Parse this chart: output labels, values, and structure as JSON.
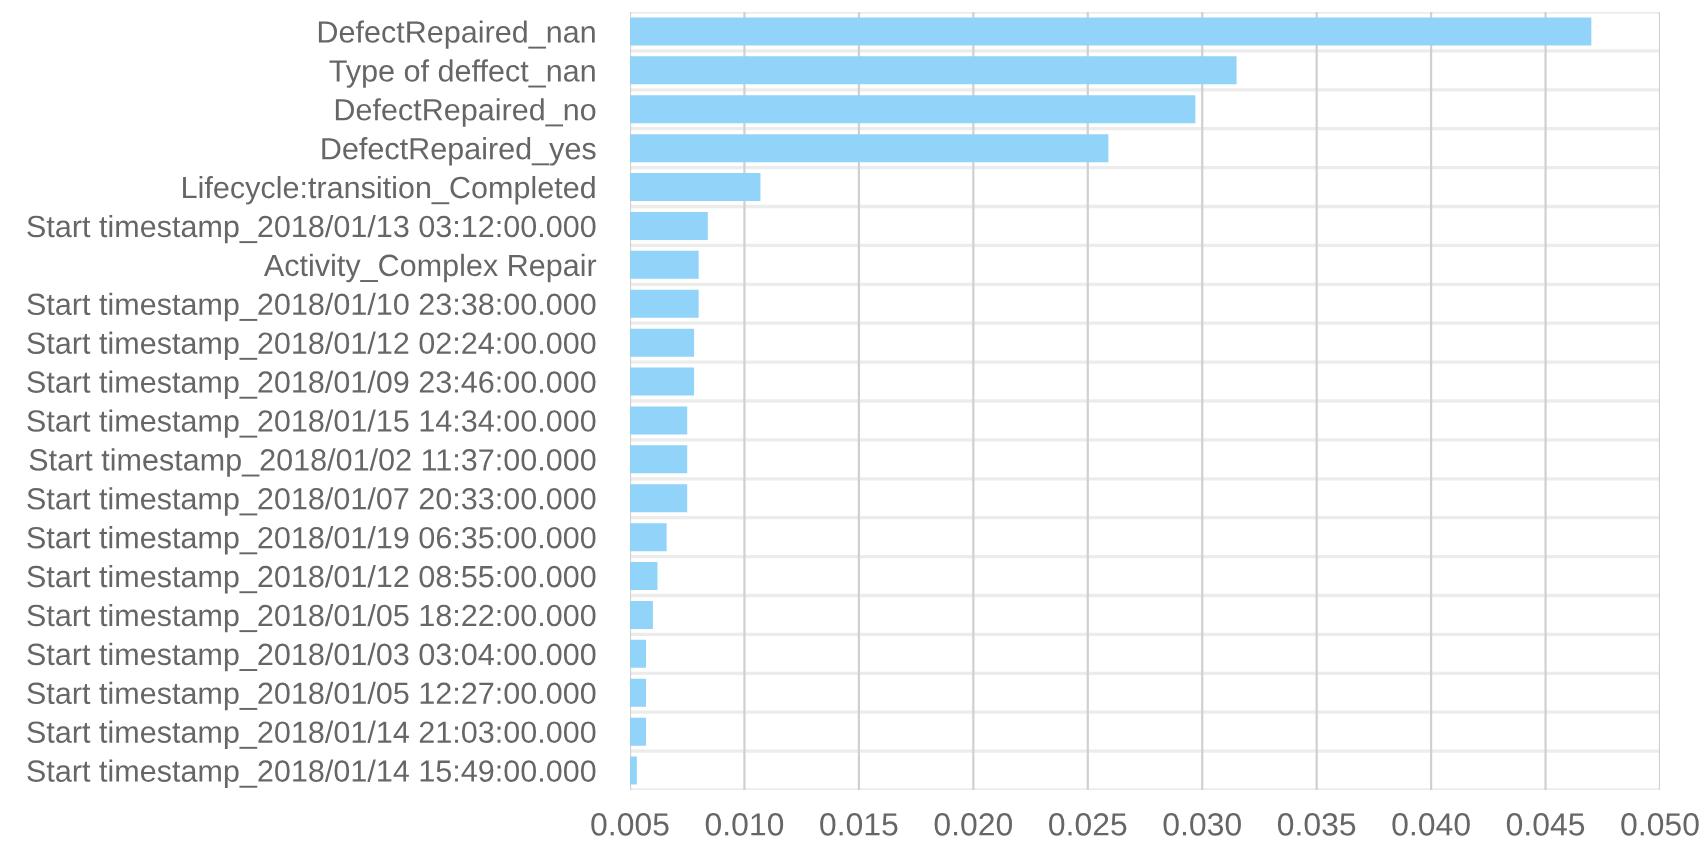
{
  "chart_data": {
    "type": "bar",
    "orientation": "horizontal",
    "categories": [
      "DefectRepaired_nan",
      "Type of deffect_nan",
      "DefectRepaired_no",
      "DefectRepaired_yes",
      "Lifecycle:transition_Completed",
      "Start timestamp_2018/01/13 03:12:00.000",
      "Activity_Complex Repair",
      "Start timestamp_2018/01/10 23:38:00.000",
      "Start timestamp_2018/01/12 02:24:00.000",
      "Start timestamp_2018/01/09 23:46:00.000",
      "Start timestamp_2018/01/15 14:34:00.000",
      "Start timestamp_2018/01/02 11:37:00.000",
      "Start timestamp_2018/01/07 20:33:00.000",
      "Start timestamp_2018/01/19 06:35:00.000",
      "Start timestamp_2018/01/12 08:55:00.000",
      "Start timestamp_2018/01/05 18:22:00.000",
      "Start timestamp_2018/01/03 03:04:00.000",
      "Start timestamp_2018/01/05 12:27:00.000",
      "Start timestamp_2018/01/14 21:03:00.000",
      "Start timestamp_2018/01/14 15:49:00.000"
    ],
    "values": [
      0.047,
      0.0315,
      0.0297,
      0.0259,
      0.0107,
      0.0084,
      0.008,
      0.008,
      0.0078,
      0.0078,
      0.0075,
      0.0075,
      0.0075,
      0.0066,
      0.0062,
      0.006,
      0.0057,
      0.0057,
      0.0057,
      0.0053
    ],
    "color": "#91d3f9",
    "xlim": [
      0.005,
      0.05
    ],
    "xticks": [
      {
        "value": 0.005,
        "label": "0.005"
      },
      {
        "value": 0.01,
        "label": "0.010"
      },
      {
        "value": 0.015,
        "label": "0.015"
      },
      {
        "value": 0.02,
        "label": "0.020"
      },
      {
        "value": 0.025,
        "label": "0.025"
      },
      {
        "value": 0.03,
        "label": "0.030"
      },
      {
        "value": 0.035,
        "label": "0.035"
      },
      {
        "value": 0.04,
        "label": "0.040"
      },
      {
        "value": 0.045,
        "label": "0.045"
      },
      {
        "value": 0.05,
        "label": "0.050"
      }
    ],
    "grid": true
  }
}
